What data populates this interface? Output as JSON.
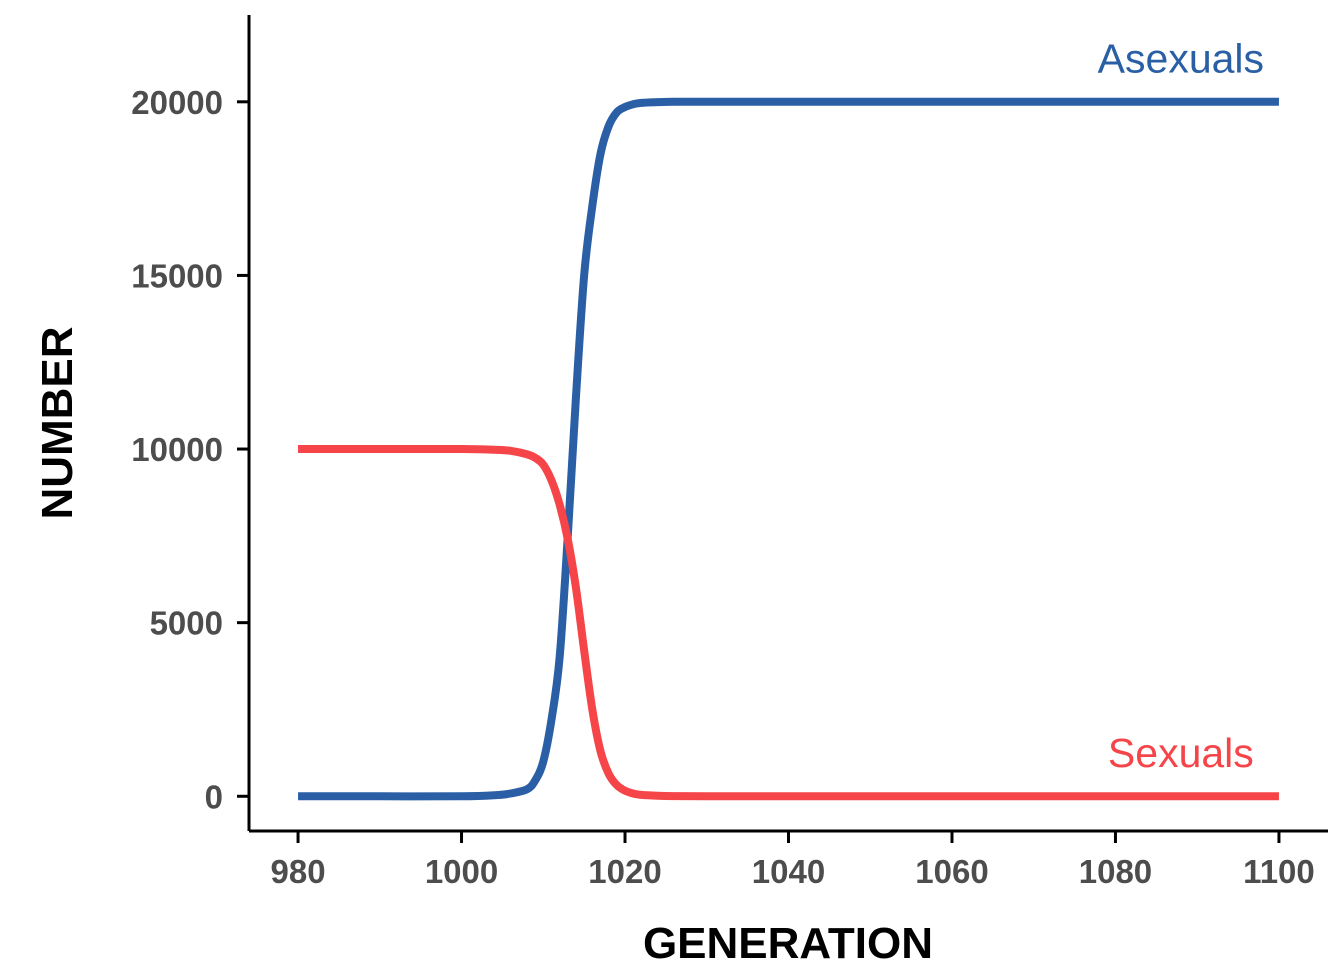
{
  "chart_data": {
    "type": "line",
    "xlabel": "GENERATION",
    "ylabel": "NUMBER",
    "xlim": [
      974,
      1106
    ],
    "ylim": [
      -1000,
      22500
    ],
    "x_ticks": [
      980,
      1000,
      1020,
      1040,
      1060,
      1080,
      1100
    ],
    "y_ticks": [
      0,
      5000,
      10000,
      15000,
      20000
    ],
    "grid": false,
    "legend": "none",
    "series": [
      {
        "name": "Asexuals",
        "color": "#2a5fa6",
        "x": [
          980,
          990,
          1000,
          1004,
          1006,
          1008,
          1009,
          1010,
          1011,
          1012,
          1013,
          1014,
          1015,
          1016,
          1017,
          1018,
          1019,
          1020,
          1021,
          1022,
          1024,
          1026,
          1030,
          1040,
          1060,
          1080,
          1100
        ],
        "y": [
          0,
          0,
          0,
          30,
          80,
          200,
          450,
          1000,
          2200,
          4000,
          7500,
          11500,
          15000,
          17000,
          18500,
          19300,
          19700,
          19850,
          19930,
          19970,
          19990,
          20000,
          20000,
          20000,
          20000,
          20000,
          20000
        ]
      },
      {
        "name": "Sexuals",
        "color": "#f54549",
        "x": [
          980,
          990,
          1000,
          1004,
          1006,
          1008,
          1009,
          1010,
          1011,
          1012,
          1013,
          1014,
          1015,
          1016,
          1017,
          1018,
          1019,
          1020,
          1021,
          1022,
          1024,
          1026,
          1030,
          1040,
          1060,
          1080,
          1100
        ],
        "y": [
          10000,
          10000,
          10000,
          9980,
          9950,
          9850,
          9750,
          9550,
          9100,
          8400,
          7400,
          6000,
          4200,
          2500,
          1300,
          650,
          320,
          160,
          80,
          40,
          15,
          5,
          0,
          0,
          0,
          0,
          0
        ]
      }
    ],
    "annotations": [
      {
        "text": "Asexuals",
        "x": 1088,
        "y": 21250,
        "color": "#2a5fa6"
      },
      {
        "text": "Sexuals",
        "x": 1088,
        "y": 1250,
        "color": "#f54549"
      }
    ]
  }
}
